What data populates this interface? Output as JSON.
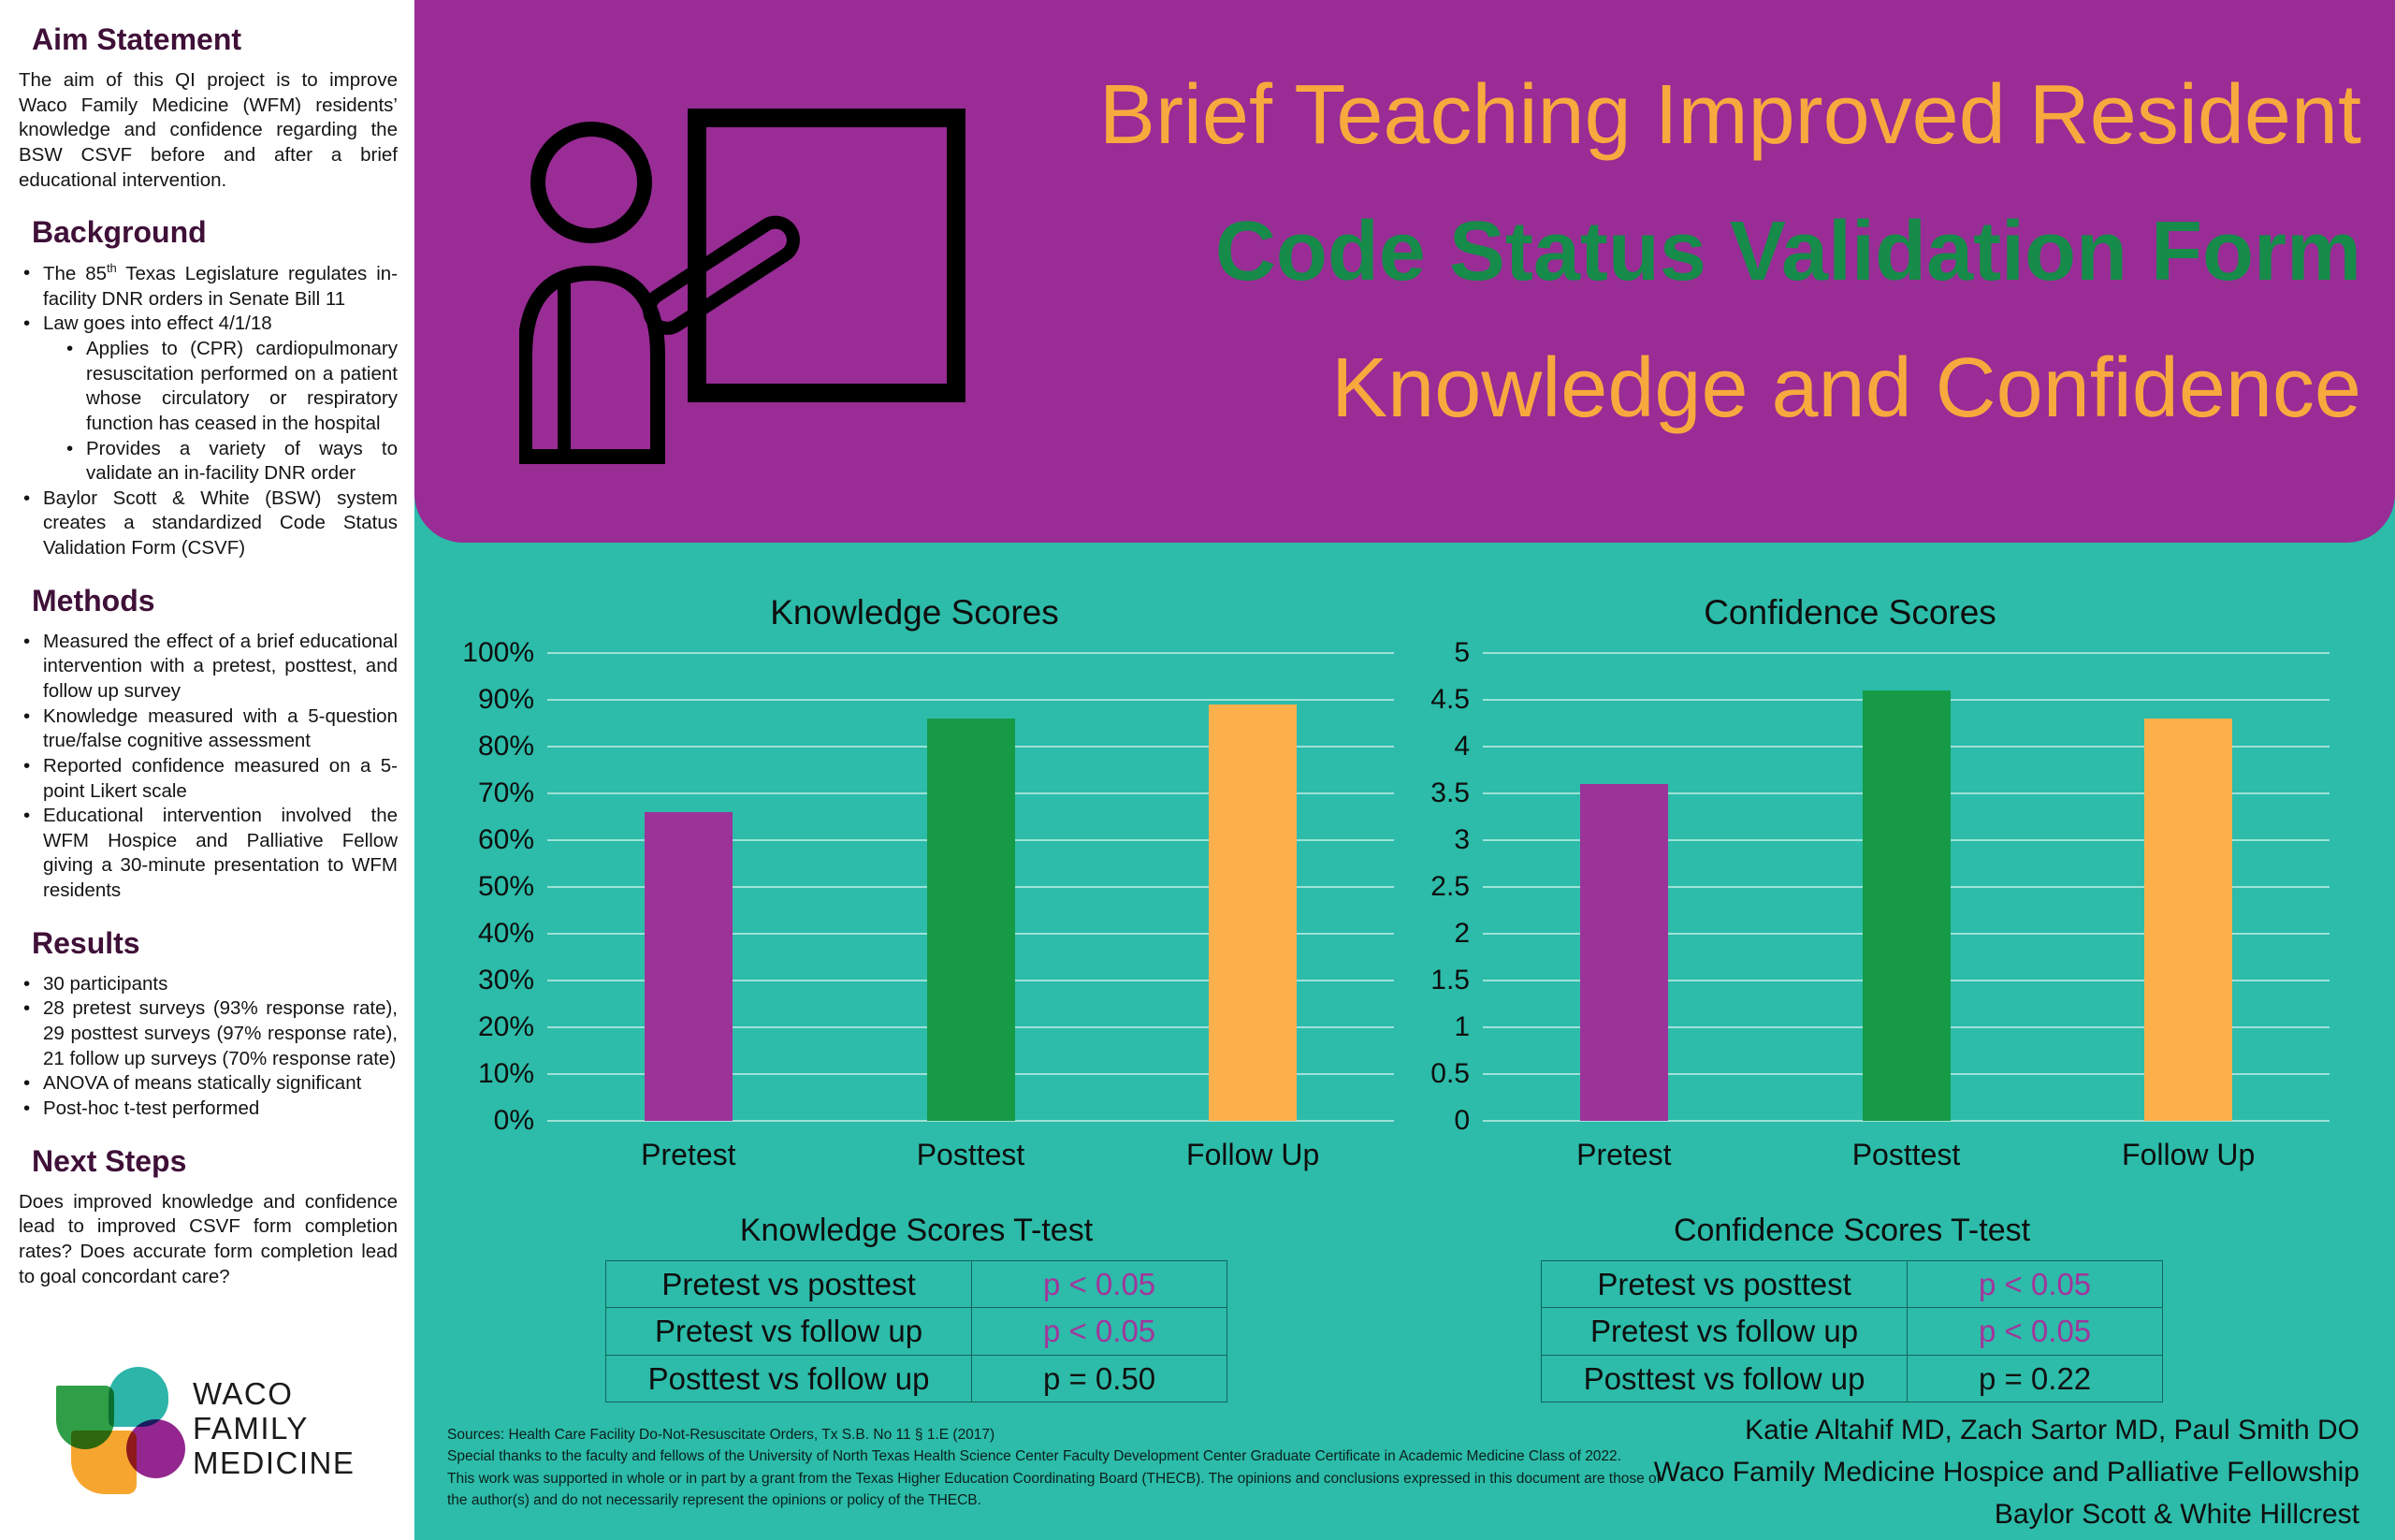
{
  "colors": {
    "page_bg": "#2CBCA9",
    "sidebar_bg": "#FFFFFF",
    "banner_bg": "#992C95",
    "title_orange": "#F8A93E",
    "title_green": "#178B4A",
    "heading_plum": "#3F1038",
    "bar_purple": "#9C3399",
    "bar_green": "#169A46",
    "bar_orange": "#FBB04C",
    "p_significant": "#A2359C",
    "p_normal": "#111111",
    "logo_green": "#2F9E47",
    "logo_teal": "#2CB5A8",
    "logo_orange": "#F6A62E",
    "logo_purple": "#93278F"
  },
  "sidebar": {
    "sections": [
      {
        "heading": "Aim Statement",
        "type": "paragraph",
        "body": "The aim of this QI project is to improve Waco Family Medicine (WFM) residents’ knowledge and confidence regarding the BSW CSVF before and after a brief educational intervention."
      },
      {
        "heading": "Background",
        "type": "bullets",
        "items": [
          {
            "level": 1,
            "text": "The 85^{th} Texas Legislature regulates in-facility DNR orders in Senate Bill 11"
          },
          {
            "level": 1,
            "text": "Law goes into effect 4/1/18"
          },
          {
            "level": 2,
            "text": "Applies to (CPR) cardiopulmonary resuscitation performed on a patient whose circulatory or respiratory function has ceased in the hospital"
          },
          {
            "level": 2,
            "text": "Provides a variety of ways to validate an in-facility DNR order"
          },
          {
            "level": 1,
            "text": "Baylor Scott & White (BSW) system creates a standardized Code Status Validation Form (CSVF)"
          }
        ]
      },
      {
        "heading": "Methods",
        "type": "bullets",
        "items": [
          {
            "level": 1,
            "text": "Measured the effect of a brief educational intervention with a pretest, posttest, and follow up survey"
          },
          {
            "level": 1,
            "text": "Knowledge measured with a 5-question true/false cognitive assessment"
          },
          {
            "level": 1,
            "text": "Reported confidence measured on a 5-point Likert scale"
          },
          {
            "level": 1,
            "text": "Educational intervention involved the WFM Hospice and Palliative Fellow giving a 30-minute presentation to WFM residents"
          }
        ]
      },
      {
        "heading": "Results",
        "type": "bullets",
        "items": [
          {
            "level": 1,
            "text": "30 participants"
          },
          {
            "level": 1,
            "text": "28 pretest surveys (93% response rate), 29 posttest surveys (97% response rate), 21 follow up surveys (70% response rate)"
          },
          {
            "level": 1,
            "text": "ANOVA of means statically significant"
          },
          {
            "level": 1,
            "text": "Post-hoc t-test performed"
          }
        ]
      },
      {
        "heading": "Next Steps",
        "type": "paragraph",
        "body": "Does improved knowledge and confidence lead to improved CSVF form completion rates? Does accurate form completion lead to goal concordant care?"
      }
    ],
    "logo": {
      "wordmark_lines": [
        "WACO",
        "FAMILY",
        "MEDICINE"
      ]
    }
  },
  "banner": {
    "icon": "teacher-presentation-icon",
    "title_lines": [
      {
        "text": "Brief Teaching Improved Resident",
        "color": "#F8A93E",
        "bold": false
      },
      {
        "text": "Code Status Validation Form",
        "color": "#178B4A",
        "bold": true
      },
      {
        "text": "Knowledge and Confidence",
        "color": "#F8A93E",
        "bold": false
      }
    ]
  },
  "chart_data": [
    {
      "type": "bar",
      "title": "Knowledge Scores",
      "categories": [
        "Pretest",
        "Posttest",
        "Follow Up"
      ],
      "values": [
        66,
        86,
        89
      ],
      "value_unit": "%",
      "xlabel": "",
      "ylabel": "",
      "ylim": [
        0,
        100
      ],
      "ytick_labels": [
        "0%",
        "10%",
        "20%",
        "30%",
        "40%",
        "50%",
        "60%",
        "70%",
        "80%",
        "90%",
        "100%"
      ],
      "bar_colors": [
        "#9C3399",
        "#169A46",
        "#FBB04C"
      ],
      "grid": true,
      "legend": "none"
    },
    {
      "type": "bar",
      "title": "Confidence Scores",
      "categories": [
        "Pretest",
        "Posttest",
        "Follow Up"
      ],
      "values": [
        3.6,
        4.6,
        4.3
      ],
      "value_unit": "Likert (1-5)",
      "xlabel": "",
      "ylabel": "",
      "ylim": [
        0,
        5
      ],
      "ytick_labels": [
        "0",
        "0.5",
        "1",
        "1.5",
        "2",
        "2.5",
        "3",
        "3.5",
        "4",
        "4.5",
        "5"
      ],
      "bar_colors": [
        "#9C3399",
        "#169A46",
        "#FBB04C"
      ],
      "grid": true,
      "legend": "none"
    }
  ],
  "ttest_tables": [
    {
      "title": "Knowledge Scores T-test",
      "rows": [
        {
          "comparison": "Pretest vs posttest",
          "p_value": "p < 0.05",
          "significant": true
        },
        {
          "comparison": "Pretest vs follow up",
          "p_value": "p < 0.05",
          "significant": true
        },
        {
          "comparison": "Posttest vs follow up",
          "p_value": "p = 0.50",
          "significant": false
        }
      ]
    },
    {
      "title": "Confidence Scores T-test",
      "rows": [
        {
          "comparison": "Pretest vs posttest",
          "p_value": "p < 0.05",
          "significant": true
        },
        {
          "comparison": "Pretest vs follow up",
          "p_value": "p < 0.05",
          "significant": true
        },
        {
          "comparison": "Posttest vs follow up",
          "p_value": "p = 0.22",
          "significant": false
        }
      ]
    }
  ],
  "footer": {
    "sources_lines": [
      "Sources: Health Care Facility Do-Not-Resuscitate Orders, Tx S.B. No 11 § 1.E (2017)",
      "Special thanks to the faculty and fellows of the University of North Texas Health Science Center Faculty Development Center Graduate Certificate in Academic Medicine Class of 2022.",
      "This work was supported in whole or in part by a grant from the Texas Higher Education Coordinating Board (THECB). The opinions and conclusions expressed in this document are those of",
      "the author(s) and do not necessarily represent the opinions or policy of the THECB."
    ],
    "credits_lines": [
      "Katie Altahif MD, Zach Sartor MD, Paul Smith DO",
      "Waco Family Medicine Hospice and Palliative Fellowship",
      "Baylor Scott & White Hillcrest"
    ]
  }
}
